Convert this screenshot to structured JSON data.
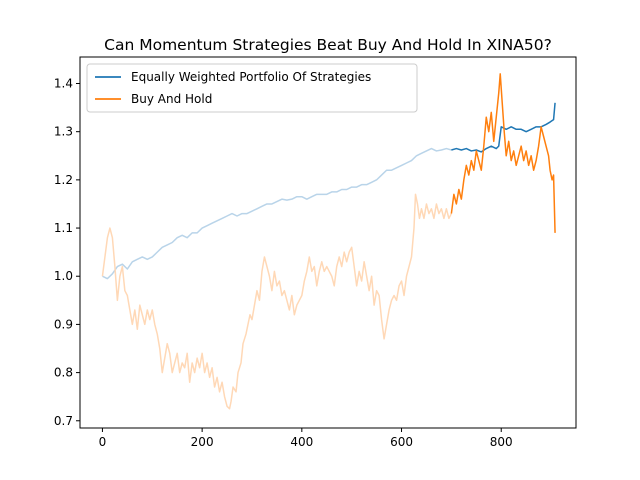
{
  "chart_data": {
    "type": "line",
    "title": "Can Momentum Strategies Beat Buy And Hold In XINA50?",
    "xlabel": "",
    "ylabel": "",
    "xlim": [
      -45,
      950
    ],
    "ylim": [
      0.685,
      1.455
    ],
    "xticks": [
      0,
      200,
      400,
      600,
      800
    ],
    "yticks": [
      0.7,
      0.8,
      0.9,
      1.0,
      1.1,
      1.2,
      1.3,
      1.4
    ],
    "ytick_labels": [
      "0.7",
      "0.8",
      "0.9",
      "1.0",
      "1.1",
      "1.2",
      "1.3",
      "1.4"
    ],
    "grid": false,
    "legend_position": "top-left",
    "highlight_start_x": 700,
    "series": [
      {
        "name": "Equally Weighted Portfolio Of Strategies",
        "color": "#1f77b4",
        "faded_color": "#b9d4e9",
        "points": [
          [
            0,
            1.0
          ],
          [
            10,
            0.995
          ],
          [
            20,
            1.005
          ],
          [
            30,
            1.02
          ],
          [
            40,
            1.025
          ],
          [
            50,
            1.015
          ],
          [
            60,
            1.03
          ],
          [
            70,
            1.035
          ],
          [
            80,
            1.04
          ],
          [
            90,
            1.035
          ],
          [
            100,
            1.04
          ],
          [
            110,
            1.05
          ],
          [
            120,
            1.06
          ],
          [
            130,
            1.065
          ],
          [
            140,
            1.07
          ],
          [
            150,
            1.08
          ],
          [
            160,
            1.085
          ],
          [
            170,
            1.08
          ],
          [
            180,
            1.09
          ],
          [
            190,
            1.09
          ],
          [
            200,
            1.1
          ],
          [
            210,
            1.105
          ],
          [
            220,
            1.11
          ],
          [
            230,
            1.115
          ],
          [
            240,
            1.12
          ],
          [
            250,
            1.125
          ],
          [
            260,
            1.13
          ],
          [
            270,
            1.125
          ],
          [
            280,
            1.13
          ],
          [
            290,
            1.13
          ],
          [
            300,
            1.135
          ],
          [
            310,
            1.14
          ],
          [
            320,
            1.145
          ],
          [
            330,
            1.15
          ],
          [
            340,
            1.15
          ],
          [
            350,
            1.155
          ],
          [
            360,
            1.16
          ],
          [
            370,
            1.158
          ],
          [
            380,
            1.16
          ],
          [
            390,
            1.165
          ],
          [
            400,
            1.165
          ],
          [
            410,
            1.16
          ],
          [
            420,
            1.165
          ],
          [
            430,
            1.17
          ],
          [
            440,
            1.17
          ],
          [
            450,
            1.17
          ],
          [
            460,
            1.175
          ],
          [
            470,
            1.175
          ],
          [
            480,
            1.18
          ],
          [
            490,
            1.18
          ],
          [
            500,
            1.185
          ],
          [
            510,
            1.185
          ],
          [
            520,
            1.19
          ],
          [
            530,
            1.19
          ],
          [
            540,
            1.195
          ],
          [
            550,
            1.2
          ],
          [
            560,
            1.21
          ],
          [
            570,
            1.22
          ],
          [
            580,
            1.22
          ],
          [
            590,
            1.225
          ],
          [
            600,
            1.23
          ],
          [
            610,
            1.235
          ],
          [
            620,
            1.24
          ],
          [
            630,
            1.25
          ],
          [
            640,
            1.255
          ],
          [
            650,
            1.26
          ],
          [
            660,
            1.265
          ],
          [
            670,
            1.26
          ],
          [
            680,
            1.262
          ],
          [
            690,
            1.265
          ],
          [
            700,
            1.262
          ],
          [
            710,
            1.265
          ],
          [
            720,
            1.262
          ],
          [
            730,
            1.265
          ],
          [
            740,
            1.26
          ],
          [
            750,
            1.262
          ],
          [
            760,
            1.258
          ],
          [
            770,
            1.265
          ],
          [
            780,
            1.27
          ],
          [
            790,
            1.265
          ],
          [
            795,
            1.27
          ],
          [
            800,
            1.31
          ],
          [
            810,
            1.305
          ],
          [
            820,
            1.31
          ],
          [
            830,
            1.305
          ],
          [
            840,
            1.305
          ],
          [
            850,
            1.3
          ],
          [
            860,
            1.305
          ],
          [
            870,
            1.31
          ],
          [
            880,
            1.31
          ],
          [
            890,
            1.315
          ],
          [
            898,
            1.32
          ],
          [
            905,
            1.325
          ],
          [
            908,
            1.36
          ]
        ]
      },
      {
        "name": "Buy And Hold",
        "color": "#ff7f0e",
        "faded_color": "#ffd8b6",
        "points": [
          [
            0,
            1.0
          ],
          [
            5,
            1.04
          ],
          [
            10,
            1.08
          ],
          [
            15,
            1.1
          ],
          [
            20,
            1.08
          ],
          [
            25,
            1.02
          ],
          [
            30,
            0.95
          ],
          [
            35,
            1.0
          ],
          [
            40,
            1.02
          ],
          [
            45,
            0.97
          ],
          [
            50,
            0.96
          ],
          [
            55,
            0.93
          ],
          [
            60,
            0.9
          ],
          [
            65,
            0.93
          ],
          [
            70,
            0.89
          ],
          [
            75,
            0.94
          ],
          [
            80,
            0.92
          ],
          [
            85,
            0.9
          ],
          [
            90,
            0.93
          ],
          [
            95,
            0.91
          ],
          [
            100,
            0.93
          ],
          [
            105,
            0.9
          ],
          [
            110,
            0.88
          ],
          [
            115,
            0.85
          ],
          [
            120,
            0.8
          ],
          [
            125,
            0.83
          ],
          [
            130,
            0.86
          ],
          [
            135,
            0.84
          ],
          [
            140,
            0.8
          ],
          [
            145,
            0.82
          ],
          [
            150,
            0.84
          ],
          [
            155,
            0.8
          ],
          [
            160,
            0.82
          ],
          [
            165,
            0.81
          ],
          [
            170,
            0.84
          ],
          [
            175,
            0.78
          ],
          [
            180,
            0.82
          ],
          [
            185,
            0.8
          ],
          [
            190,
            0.83
          ],
          [
            195,
            0.81
          ],
          [
            200,
            0.84
          ],
          [
            205,
            0.8
          ],
          [
            210,
            0.82
          ],
          [
            215,
            0.79
          ],
          [
            220,
            0.81
          ],
          [
            225,
            0.77
          ],
          [
            230,
            0.79
          ],
          [
            235,
            0.76
          ],
          [
            240,
            0.78
          ],
          [
            245,
            0.75
          ],
          [
            250,
            0.73
          ],
          [
            255,
            0.725
          ],
          [
            258,
            0.74
          ],
          [
            262,
            0.77
          ],
          [
            268,
            0.76
          ],
          [
            272,
            0.8
          ],
          [
            278,
            0.82
          ],
          [
            282,
            0.86
          ],
          [
            288,
            0.88
          ],
          [
            292,
            0.9
          ],
          [
            296,
            0.92
          ],
          [
            300,
            0.91
          ],
          [
            305,
            0.94
          ],
          [
            310,
            0.97
          ],
          [
            315,
            0.95
          ],
          [
            320,
            1.01
          ],
          [
            325,
            1.04
          ],
          [
            330,
            1.02
          ],
          [
            335,
            1.0
          ],
          [
            340,
            0.97
          ],
          [
            345,
            1.01
          ],
          [
            350,
            0.98
          ],
          [
            355,
            0.99
          ],
          [
            360,
            0.96
          ],
          [
            365,
            0.97
          ],
          [
            370,
            0.95
          ],
          [
            375,
            0.93
          ],
          [
            380,
            0.96
          ],
          [
            385,
            0.92
          ],
          [
            390,
            0.94
          ],
          [
            395,
            0.95
          ],
          [
            400,
            0.96
          ],
          [
            405,
            0.99
          ],
          [
            410,
            1.01
          ],
          [
            415,
            1.04
          ],
          [
            420,
            1.01
          ],
          [
            425,
            1.02
          ],
          [
            430,
            0.98
          ],
          [
            435,
            1.01
          ],
          [
            440,
            1.03
          ],
          [
            445,
            1.01
          ],
          [
            450,
            1.02
          ],
          [
            455,
            1.01
          ],
          [
            460,
            1.0
          ],
          [
            465,
            0.98
          ],
          [
            470,
            1.02
          ],
          [
            475,
            1.04
          ],
          [
            480,
            1.02
          ],
          [
            485,
            1.05
          ],
          [
            490,
            1.03
          ],
          [
            495,
            1.05
          ],
          [
            500,
            1.06
          ],
          [
            505,
            1.02
          ],
          [
            510,
            0.98
          ],
          [
            515,
            1.01
          ],
          [
            520,
            0.99
          ],
          [
            525,
            1.03
          ],
          [
            530,
            1.0
          ],
          [
            535,
            0.97
          ],
          [
            540,
            1.0
          ],
          [
            545,
            0.94
          ],
          [
            550,
            0.97
          ],
          [
            555,
            0.96
          ],
          [
            560,
            0.91
          ],
          [
            565,
            0.87
          ],
          [
            570,
            0.9
          ],
          [
            575,
            0.93
          ],
          [
            580,
            0.95
          ],
          [
            585,
            0.96
          ],
          [
            590,
            0.95
          ],
          [
            595,
            0.98
          ],
          [
            600,
            0.99
          ],
          [
            605,
            0.96
          ],
          [
            610,
            1.0
          ],
          [
            615,
            1.02
          ],
          [
            620,
            1.04
          ],
          [
            625,
            1.1
          ],
          [
            628,
            1.17
          ],
          [
            632,
            1.15
          ],
          [
            636,
            1.12
          ],
          [
            640,
            1.14
          ],
          [
            645,
            1.12
          ],
          [
            650,
            1.15
          ],
          [
            655,
            1.13
          ],
          [
            660,
            1.14
          ],
          [
            665,
            1.12
          ],
          [
            670,
            1.15
          ],
          [
            675,
            1.13
          ],
          [
            680,
            1.14
          ],
          [
            685,
            1.12
          ],
          [
            690,
            1.14
          ],
          [
            695,
            1.12
          ],
          [
            700,
            1.13
          ],
          [
            705,
            1.17
          ],
          [
            710,
            1.15
          ],
          [
            715,
            1.18
          ],
          [
            720,
            1.16
          ],
          [
            725,
            1.2
          ],
          [
            730,
            1.23
          ],
          [
            735,
            1.21
          ],
          [
            740,
            1.24
          ],
          [
            745,
            1.22
          ],
          [
            750,
            1.26
          ],
          [
            755,
            1.24
          ],
          [
            760,
            1.22
          ],
          [
            765,
            1.27
          ],
          [
            770,
            1.33
          ],
          [
            775,
            1.3
          ],
          [
            780,
            1.34
          ],
          [
            785,
            1.28
          ],
          [
            790,
            1.33
          ],
          [
            795,
            1.38
          ],
          [
            798,
            1.42
          ],
          [
            802,
            1.36
          ],
          [
            806,
            1.3
          ],
          [
            810,
            1.25
          ],
          [
            815,
            1.28
          ],
          [
            820,
            1.24
          ],
          [
            825,
            1.26
          ],
          [
            830,
            1.23
          ],
          [
            835,
            1.25
          ],
          [
            840,
            1.27
          ],
          [
            845,
            1.24
          ],
          [
            850,
            1.26
          ],
          [
            855,
            1.23
          ],
          [
            860,
            1.25
          ],
          [
            865,
            1.22
          ],
          [
            870,
            1.24
          ],
          [
            875,
            1.27
          ],
          [
            880,
            1.31
          ],
          [
            885,
            1.29
          ],
          [
            890,
            1.27
          ],
          [
            895,
            1.25
          ],
          [
            898,
            1.22
          ],
          [
            902,
            1.2
          ],
          [
            905,
            1.21
          ],
          [
            908,
            1.09
          ]
        ]
      }
    ]
  }
}
